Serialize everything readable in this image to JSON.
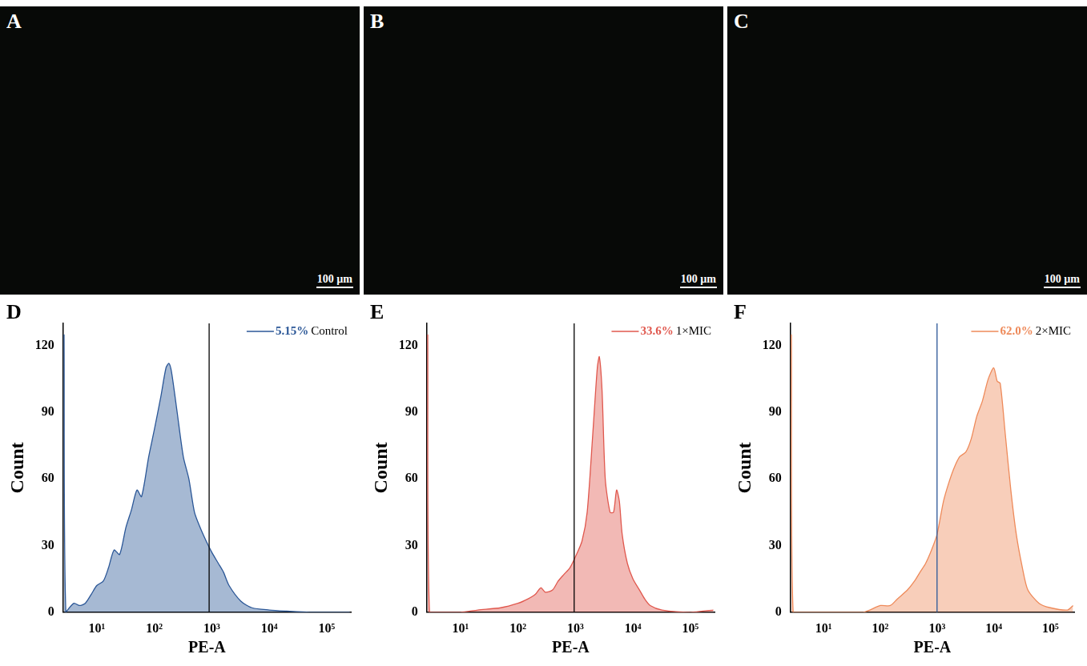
{
  "images": [
    {
      "panel": "A",
      "scale_bar": "100 µm"
    },
    {
      "panel": "B",
      "scale_bar": "100 µm"
    },
    {
      "panel": "C",
      "scale_bar": "100 µm"
    }
  ],
  "chart_data": [
    {
      "panel": "D",
      "type": "area",
      "x_label": "PE-A",
      "y_label": "Count",
      "series": [
        {
          "name": "Control",
          "color": "#2b5797",
          "x": [
            2.7,
            2.9,
            4,
            5,
            6.3,
            8,
            10,
            13,
            16,
            20,
            25,
            32,
            40,
            50,
            60,
            80,
            100,
            130,
            160,
            180,
            200,
            250,
            320,
            400,
            500,
            630,
            800,
            1000,
            1300,
            1600,
            2000,
            3200,
            5000,
            10000,
            20000,
            50000,
            250000
          ],
          "values": [
            125,
            0,
            4,
            3,
            4,
            8,
            12,
            14,
            20,
            28,
            26,
            38,
            46,
            55,
            52,
            70,
            82,
            97,
            110,
            112,
            108,
            90,
            70,
            60,
            45,
            38,
            32,
            27,
            22,
            18,
            12,
            5,
            2,
            1,
            0.5,
            0,
            0
          ]
        }
      ],
      "annotation": "5.15%",
      "gate": {
        "value": 900,
        "color": "#000000"
      },
      "log": "x",
      "xlim": [
        2.6,
        262144
      ],
      "xticks": [
        {
          "value": 10,
          "label": "10¹"
        },
        {
          "value": 100,
          "label": "10²"
        },
        {
          "value": 1000,
          "label": "10³"
        },
        {
          "value": 10000,
          "label": "10⁴"
        },
        {
          "value": 100000,
          "label": "10⁵"
        }
      ],
      "ylim": [
        0,
        130
      ],
      "yticks": [
        0,
        30,
        60,
        90,
        120
      ],
      "grid": false,
      "legend": "top-right"
    },
    {
      "panel": "E",
      "type": "area",
      "x_label": "PE-A",
      "y_label": "Count",
      "series": [
        {
          "name": "1×MIC",
          "color": "#e0584e",
          "x": [
            2.7,
            2.9,
            10,
            20,
            50,
            100,
            150,
            200,
            250,
            300,
            400,
            500,
            630,
            800,
            1000,
            1300,
            1600,
            2000,
            2400,
            2600,
            2900,
            3300,
            4000,
            4600,
            5200,
            5800,
            6500,
            8000,
            10000,
            13000,
            16000,
            20000,
            32000,
            100000,
            250000
          ],
          "values": [
            125,
            0,
            0,
            1,
            2,
            4,
            6,
            8,
            11,
            9,
            10,
            14,
            17,
            20,
            25,
            32,
            45,
            80,
            110,
            115,
            100,
            60,
            45,
            45,
            55,
            50,
            35,
            22,
            15,
            10,
            6,
            3,
            1,
            0,
            1
          ]
        }
      ],
      "annotation": "33.6%",
      "gate": {
        "value": 950,
        "color": "#000000"
      },
      "log": "x",
      "xlim": [
        2.6,
        262144
      ],
      "xticks": [
        {
          "value": 10,
          "label": "10¹"
        },
        {
          "value": 100,
          "label": "10²"
        },
        {
          "value": 1000,
          "label": "10³"
        },
        {
          "value": 10000,
          "label": "10⁴"
        },
        {
          "value": 100000,
          "label": "10⁵"
        }
      ],
      "ylim": [
        0,
        130
      ],
      "yticks": [
        0,
        30,
        60,
        90,
        120
      ],
      "grid": false,
      "legend": "top-right"
    },
    {
      "panel": "F",
      "type": "area",
      "x_label": "PE-A",
      "y_label": "Count",
      "series": [
        {
          "name": "2×MIC",
          "color": "#ee8a5a",
          "x": [
            2.7,
            2.9,
            50,
            100,
            150,
            200,
            300,
            400,
            500,
            630,
            800,
            1000,
            1300,
            1600,
            2000,
            2500,
            3200,
            4000,
            5000,
            6300,
            8000,
            10000,
            11500,
            13000,
            16000,
            20000,
            25000,
            32000,
            40000,
            63000,
            100000,
            200000,
            250000
          ],
          "values": [
            125,
            0,
            0,
            3,
            3,
            6,
            10,
            14,
            18,
            22,
            28,
            35,
            50,
            58,
            65,
            70,
            72,
            78,
            88,
            95,
            105,
            110,
            104,
            103,
            80,
            55,
            35,
            20,
            10,
            4,
            2,
            1,
            3
          ]
        }
      ],
      "annotation": "62.0%",
      "gate": {
        "value": 1000,
        "color": "#2b5797"
      },
      "log": "x",
      "xlim": [
        2.6,
        262144
      ],
      "xticks": [
        {
          "value": 10,
          "label": "10¹"
        },
        {
          "value": 100,
          "label": "10²"
        },
        {
          "value": 1000,
          "label": "10³"
        },
        {
          "value": 10000,
          "label": "10⁴"
        },
        {
          "value": 100000,
          "label": "10⁵"
        }
      ],
      "ylim": [
        0,
        130
      ],
      "yticks": [
        0,
        30,
        60,
        90,
        120
      ],
      "grid": false,
      "legend": "top-right"
    }
  ]
}
